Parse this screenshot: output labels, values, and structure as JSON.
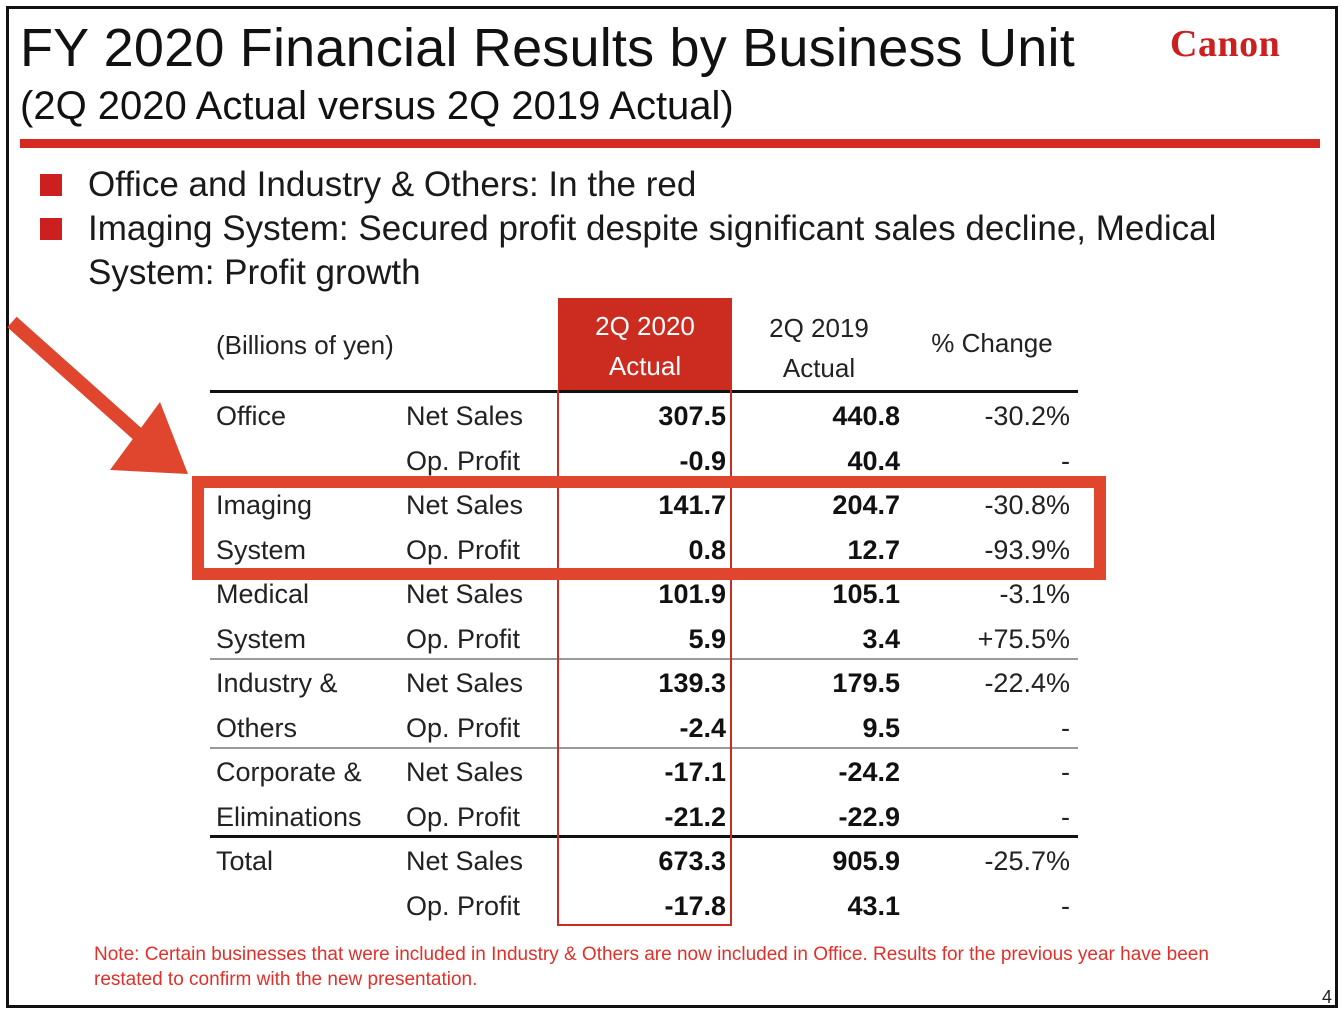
{
  "slide": {
    "title": "FY 2020 Financial Results by Business Unit",
    "subtitle": "(2Q 2020 Actual versus 2Q 2019 Actual)",
    "logo_text": "Canon",
    "accent_color": "#cc1f1f",
    "highlight_color": "#e0452d",
    "page_number": "4"
  },
  "bullets": [
    "Office and Industry & Others: In the red",
    "Imaging System: Secured profit despite significant sales decline, Medical System: Profit growth"
  ],
  "table": {
    "units_label": "(Billions of yen)",
    "col_2020_line1": "2Q 2020",
    "col_2020_line2": "Actual",
    "col_2019_line1": "2Q 2019",
    "col_2019_line2": "Actual",
    "col_change": "% Change",
    "rows": [
      {
        "unit": "Office",
        "metric": "Net Sales",
        "v2020": "307.5",
        "v2019": "440.8",
        "change": "-30.2%"
      },
      {
        "unit": "",
        "metric": "Op. Profit",
        "v2020": "-0.9",
        "v2019": "40.4",
        "change": "-"
      },
      {
        "unit": "Imaging",
        "metric": "Net Sales",
        "v2020": "141.7",
        "v2019": "204.7",
        "change": "-30.8%"
      },
      {
        "unit": "System",
        "metric": "Op. Profit",
        "v2020": "0.8",
        "v2019": "12.7",
        "change": "-93.9%"
      },
      {
        "unit": "Medical",
        "metric": "Net Sales",
        "v2020": "101.9",
        "v2019": "105.1",
        "change": "-3.1%"
      },
      {
        "unit": "System",
        "metric": "Op. Profit",
        "v2020": "5.9",
        "v2019": "3.4",
        "change": "+75.5%"
      },
      {
        "unit": "Industry &",
        "metric": "Net Sales",
        "v2020": "139.3",
        "v2019": "179.5",
        "change": "-22.4%"
      },
      {
        "unit": "Others",
        "metric": "Op. Profit",
        "v2020": "-2.4",
        "v2019": "9.5",
        "change": "-"
      },
      {
        "unit": "Corporate &",
        "metric": "Net Sales",
        "v2020": "-17.1",
        "v2019": "-24.2",
        "change": "-"
      },
      {
        "unit": "Eliminations",
        "metric": "Op. Profit",
        "v2020": "-21.2",
        "v2019": "-22.9",
        "change": "-"
      },
      {
        "unit": "Total",
        "metric": "Net Sales",
        "v2020": "673.3",
        "v2019": "905.9",
        "change": "-25.7%"
      },
      {
        "unit": "",
        "metric": "Op. Profit",
        "v2020": "-17.8",
        "v2019": "43.1",
        "change": "-"
      }
    ]
  },
  "note": "Note: Certain businesses that were included in Industry & Others are now included in Office. Results for the previous year have been restated to confirm with the new presentation."
}
